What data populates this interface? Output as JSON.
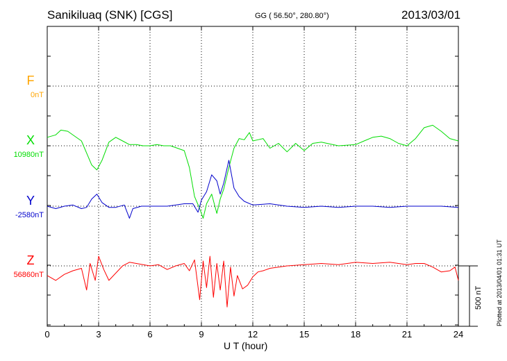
{
  "header": {
    "station": "Sanikiluaq (SNK)  [CGS]",
    "coords": "GG ( 56.50°, 280.80°)",
    "date": "2013/03/01"
  },
  "footer": {
    "plotted": "Plotted at 2013/04/01 01:31  UT"
  },
  "chart_data": {
    "type": "line",
    "xlabel": "U T (hour)",
    "xlim": [
      0,
      24
    ],
    "xticks": [
      "0",
      "3",
      "6",
      "9",
      "12",
      "15",
      "18",
      "21",
      "24"
    ],
    "grid": true,
    "scale_bar": "500 nT",
    "colors": {
      "F": "#ffa500",
      "X": "#00dd00",
      "Y": "#0000cc",
      "Z": "#ff0000"
    },
    "series": [
      {
        "name": "F",
        "baseline_label": "0nT",
        "x": [],
        "y": []
      },
      {
        "name": "X",
        "baseline_label": "10980nT",
        "x": [
          0,
          0.5,
          0.8,
          1.2,
          1.6,
          2.0,
          2.3,
          2.6,
          2.9,
          3.2,
          3.6,
          4.0,
          4.4,
          4.8,
          5.2,
          5.6,
          6.0,
          6.4,
          6.8,
          7.2,
          7.6,
          8.0,
          8.3,
          8.6,
          8.9,
          9.1,
          9.3,
          9.6,
          9.9,
          10.1,
          10.3,
          10.6,
          10.9,
          11.2,
          11.5,
          11.8,
          12.0,
          12.3,
          12.6,
          13.0,
          13.5,
          14.0,
          14.5,
          15.0,
          15.5,
          16.0,
          17.0,
          18.0,
          18.5,
          19.0,
          19.5,
          20.0,
          20.5,
          21.0,
          21.5,
          22.0,
          22.5,
          23.0,
          23.5,
          24.0
        ],
        "y": [
          70,
          90,
          130,
          120,
          80,
          40,
          -60,
          -160,
          -200,
          -120,
          30,
          70,
          40,
          10,
          10,
          0,
          0,
          10,
          0,
          0,
          -20,
          -40,
          -180,
          -420,
          -520,
          -600,
          -480,
          -400,
          -560,
          -440,
          -360,
          -180,
          -20,
          60,
          50,
          110,
          40,
          50,
          60,
          -20,
          20,
          -50,
          20,
          -40,
          20,
          30,
          0,
          10,
          40,
          70,
          80,
          60,
          20,
          0,
          60,
          150,
          170,
          120,
          60,
          40
        ],
        "y_unit": "nT relative to baseline"
      },
      {
        "name": "Y",
        "baseline_label": "-2580nT",
        "x": [
          0,
          0.5,
          1.0,
          1.5,
          2.0,
          2.3,
          2.6,
          2.9,
          3.2,
          3.6,
          4.0,
          4.5,
          4.8,
          5.0,
          5.5,
          6.0,
          7.0,
          8.0,
          8.5,
          8.8,
          9.0,
          9.3,
          9.6,
          9.9,
          10.1,
          10.3,
          10.6,
          10.9,
          11.2,
          11.5,
          12.0,
          13.0,
          14.0,
          15.0,
          16.0,
          17.0,
          18.0,
          19.0,
          20.0,
          21.0,
          22.0,
          23.0,
          24.0
        ],
        "y": [
          0,
          -20,
          0,
          10,
          -20,
          -10,
          60,
          100,
          30,
          -10,
          -10,
          10,
          -100,
          -20,
          0,
          0,
          0,
          20,
          20,
          -50,
          50,
          120,
          260,
          210,
          100,
          190,
          380,
          150,
          80,
          40,
          10,
          20,
          0,
          -10,
          0,
          -10,
          0,
          0,
          -10,
          0,
          0,
          0,
          -10
        ],
        "y_unit": "nT relative to baseline"
      },
      {
        "name": "Z",
        "baseline_label": "56860nT",
        "x": [
          0,
          0.5,
          1.0,
          1.5,
          2.0,
          2.3,
          2.5,
          2.8,
          3.0,
          3.3,
          3.6,
          4.0,
          4.4,
          4.8,
          5.2,
          5.6,
          6.0,
          6.5,
          7.0,
          7.5,
          8.0,
          8.3,
          8.6,
          8.9,
          9.1,
          9.3,
          9.5,
          9.7,
          9.9,
          10.1,
          10.3,
          10.5,
          10.7,
          10.9,
          11.1,
          11.4,
          11.7,
          12.0,
          12.3,
          12.6,
          13.0,
          14.0,
          15.0,
          16.0,
          17.0,
          18.0,
          19.0,
          20.0,
          20.5,
          21.0,
          21.5,
          22.0,
          22.5,
          23.0,
          23.5,
          23.8,
          24.0
        ],
        "y": [
          -80,
          -120,
          -70,
          -40,
          -20,
          -200,
          20,
          -120,
          80,
          -30,
          -120,
          -60,
          0,
          30,
          20,
          10,
          0,
          10,
          -30,
          0,
          20,
          -40,
          50,
          -280,
          40,
          -180,
          80,
          -260,
          20,
          -200,
          40,
          -340,
          -10,
          -250,
          -80,
          -190,
          -160,
          -90,
          -50,
          -40,
          -20,
          0,
          10,
          20,
          10,
          30,
          20,
          30,
          20,
          10,
          20,
          20,
          -10,
          -50,
          -40,
          -10,
          -120
        ],
        "y_unit": "nT relative to baseline"
      }
    ]
  }
}
